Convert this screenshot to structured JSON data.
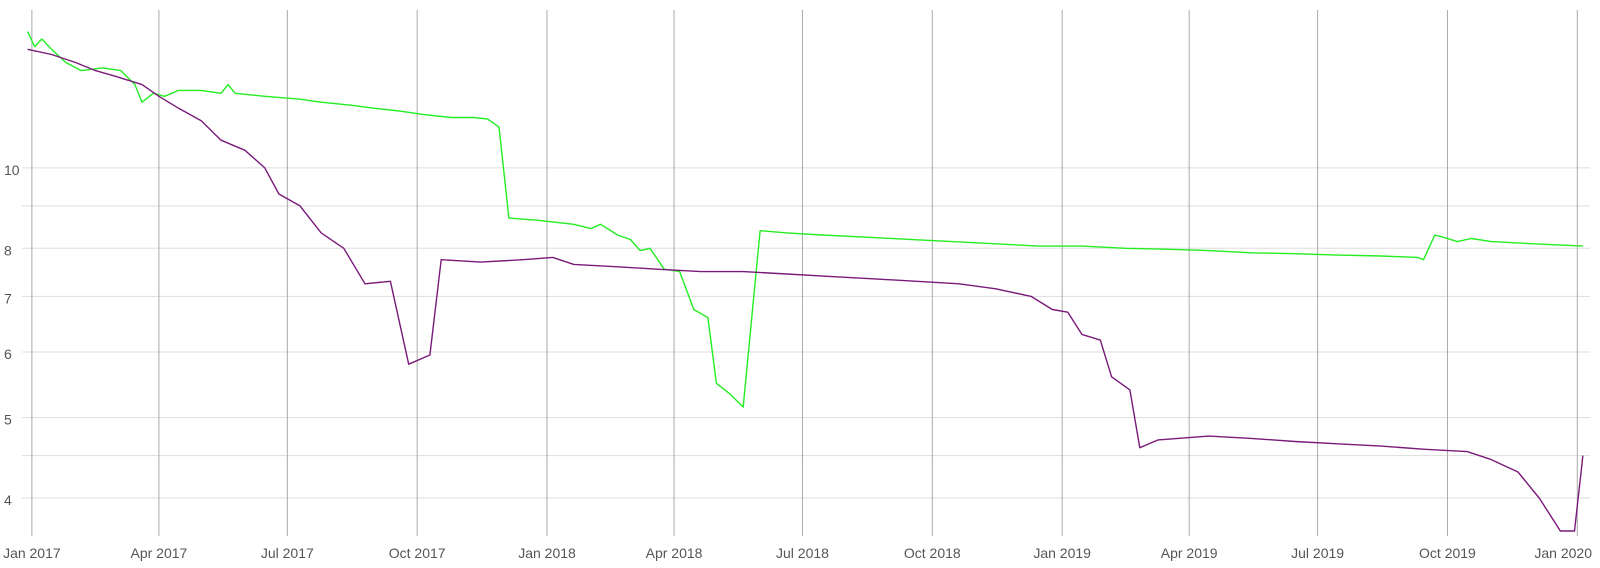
{
  "chart_data": {
    "type": "line",
    "title": "",
    "xlabel": "",
    "ylabel": "",
    "y_scale": "log",
    "ylim": [
      3.6,
      15.5
    ],
    "xlim": [
      "2016-12-25",
      "2020-01-10"
    ],
    "grid": true,
    "legend": "none",
    "y_ticks": [
      {
        "value": 4,
        "label": "4"
      },
      {
        "value": 4.5,
        "label": ""
      },
      {
        "value": 5,
        "label": "5"
      },
      {
        "value": 6,
        "label": "6"
      },
      {
        "value": 7,
        "label": "7"
      },
      {
        "value": 8,
        "label": "8"
      },
      {
        "value": 9,
        "label": ""
      },
      {
        "value": 10,
        "label": "10"
      }
    ],
    "x_ticks": [
      {
        "date": "2017-01-01",
        "label": "Jan 2017"
      },
      {
        "date": "2017-04-01",
        "label": "Apr 2017"
      },
      {
        "date": "2017-07-01",
        "label": "Jul 2017"
      },
      {
        "date": "2017-10-01",
        "label": "Oct 2017"
      },
      {
        "date": "2018-01-01",
        "label": "Jan 2018"
      },
      {
        "date": "2018-04-01",
        "label": "Apr 2018"
      },
      {
        "date": "2018-07-01",
        "label": "Jul 2018"
      },
      {
        "date": "2018-10-01",
        "label": "Oct 2018"
      },
      {
        "date": "2019-01-01",
        "label": "Jan 2019"
      },
      {
        "date": "2019-04-01",
        "label": "Apr 2019"
      },
      {
        "date": "2019-07-01",
        "label": "Jul 2019"
      },
      {
        "date": "2019-10-01",
        "label": "Oct 2019"
      },
      {
        "date": "2020-01-01",
        "label": "Jan 2020"
      }
    ],
    "series": [
      {
        "color": "#22ee22",
        "points": [
          [
            "2016-12-29",
            14.6
          ],
          [
            "2017-01-03",
            14.0
          ],
          [
            "2017-01-08",
            14.3
          ],
          [
            "2017-01-15",
            13.9
          ],
          [
            "2017-01-25",
            13.4
          ],
          [
            "2017-02-05",
            13.1
          ],
          [
            "2017-02-20",
            13.2
          ],
          [
            "2017-03-05",
            13.1
          ],
          [
            "2017-03-15",
            12.6
          ],
          [
            "2017-03-20",
            12.0
          ],
          [
            "2017-03-28",
            12.3
          ],
          [
            "2017-04-05",
            12.2
          ],
          [
            "2017-04-15",
            12.4
          ],
          [
            "2017-05-01",
            12.4
          ],
          [
            "2017-05-15",
            12.3
          ],
          [
            "2017-05-20",
            12.6
          ],
          [
            "2017-05-25",
            12.3
          ],
          [
            "2017-06-15",
            12.2
          ],
          [
            "2017-07-10",
            12.1
          ],
          [
            "2017-07-25",
            12.0
          ],
          [
            "2017-08-15",
            11.9
          ],
          [
            "2017-09-01",
            11.8
          ],
          [
            "2017-09-20",
            11.7
          ],
          [
            "2017-10-05",
            11.6
          ],
          [
            "2017-10-25",
            11.5
          ],
          [
            "2017-11-10",
            11.5
          ],
          [
            "2017-11-20",
            11.45
          ],
          [
            "2017-11-28",
            11.2
          ],
          [
            "2017-12-05",
            8.7
          ],
          [
            "2017-12-25",
            8.65
          ],
          [
            "2018-01-20",
            8.55
          ],
          [
            "2018-02-01",
            8.45
          ],
          [
            "2018-02-08",
            8.55
          ],
          [
            "2018-02-20",
            8.3
          ],
          [
            "2018-03-01",
            8.2
          ],
          [
            "2018-03-08",
            7.95
          ],
          [
            "2018-03-15",
            8.0
          ],
          [
            "2018-03-25",
            7.55
          ],
          [
            "2018-04-05",
            7.5
          ],
          [
            "2018-04-15",
            6.75
          ],
          [
            "2018-04-25",
            6.6
          ],
          [
            "2018-05-01",
            5.5
          ],
          [
            "2018-05-10",
            5.35
          ],
          [
            "2018-05-20",
            5.15
          ],
          [
            "2018-06-01",
            8.4
          ],
          [
            "2018-06-20",
            8.35
          ],
          [
            "2018-07-15",
            8.3
          ],
          [
            "2018-08-15",
            8.25
          ],
          [
            "2018-09-15",
            8.2
          ],
          [
            "2018-10-15",
            8.15
          ],
          [
            "2018-11-15",
            8.1
          ],
          [
            "2018-12-15",
            8.05
          ],
          [
            "2019-01-15",
            8.05
          ],
          [
            "2019-02-15",
            8.0
          ],
          [
            "2019-03-15",
            7.98
          ],
          [
            "2019-04-15",
            7.95
          ],
          [
            "2019-05-15",
            7.9
          ],
          [
            "2019-06-15",
            7.88
          ],
          [
            "2019-07-15",
            7.85
          ],
          [
            "2019-08-15",
            7.83
          ],
          [
            "2019-09-10",
            7.8
          ],
          [
            "2019-09-14",
            7.75
          ],
          [
            "2019-09-22",
            8.3
          ],
          [
            "2019-09-28",
            8.25
          ],
          [
            "2019-10-08",
            8.15
          ],
          [
            "2019-10-18",
            8.22
          ],
          [
            "2019-11-01",
            8.15
          ],
          [
            "2019-12-01",
            8.1
          ],
          [
            "2020-01-05",
            8.05
          ]
        ]
      },
      {
        "color": "#7a1a7a",
        "points": [
          [
            "2016-12-29",
            13.9
          ],
          [
            "2017-01-15",
            13.7
          ],
          [
            "2017-02-01",
            13.4
          ],
          [
            "2017-02-15",
            13.1
          ],
          [
            "2017-03-01",
            12.9
          ],
          [
            "2017-03-20",
            12.6
          ],
          [
            "2017-04-01",
            12.2
          ],
          [
            "2017-04-15",
            11.8
          ],
          [
            "2017-05-01",
            11.4
          ],
          [
            "2017-05-15",
            10.8
          ],
          [
            "2017-06-01",
            10.5
          ],
          [
            "2017-06-15",
            10.0
          ],
          [
            "2017-06-25",
            9.3
          ],
          [
            "2017-07-10",
            9.0
          ],
          [
            "2017-07-25",
            8.35
          ],
          [
            "2017-08-10",
            8.0
          ],
          [
            "2017-08-25",
            7.25
          ],
          [
            "2017-09-12",
            7.3
          ],
          [
            "2017-09-25",
            5.8
          ],
          [
            "2017-10-10",
            5.95
          ],
          [
            "2017-10-18",
            7.75
          ],
          [
            "2017-11-15",
            7.7
          ],
          [
            "2017-12-15",
            7.75
          ],
          [
            "2018-01-05",
            7.8
          ],
          [
            "2018-01-20",
            7.65
          ],
          [
            "2018-02-20",
            7.6
          ],
          [
            "2018-03-20",
            7.55
          ],
          [
            "2018-04-20",
            7.5
          ],
          [
            "2018-05-20",
            7.5
          ],
          [
            "2018-06-20",
            7.45
          ],
          [
            "2018-07-20",
            7.4
          ],
          [
            "2018-08-20",
            7.35
          ],
          [
            "2018-09-20",
            7.3
          ],
          [
            "2018-10-20",
            7.25
          ],
          [
            "2018-11-15",
            7.15
          ],
          [
            "2018-12-10",
            7.0
          ],
          [
            "2018-12-25",
            6.75
          ],
          [
            "2019-01-05",
            6.7
          ],
          [
            "2019-01-15",
            6.3
          ],
          [
            "2019-01-28",
            6.2
          ],
          [
            "2019-02-05",
            5.6
          ],
          [
            "2019-02-18",
            5.4
          ],
          [
            "2019-02-25",
            4.6
          ],
          [
            "2019-03-10",
            4.7
          ],
          [
            "2019-04-15",
            4.75
          ],
          [
            "2019-05-15",
            4.72
          ],
          [
            "2019-06-15",
            4.68
          ],
          [
            "2019-07-15",
            4.65
          ],
          [
            "2019-08-15",
            4.62
          ],
          [
            "2019-09-15",
            4.58
          ],
          [
            "2019-10-15",
            4.55
          ],
          [
            "2019-11-01",
            4.45
          ],
          [
            "2019-11-20",
            4.3
          ],
          [
            "2019-12-05",
            4.0
          ],
          [
            "2019-12-20",
            3.65
          ],
          [
            "2019-12-30",
            3.65
          ],
          [
            "2020-01-05",
            4.5
          ]
        ]
      }
    ]
  }
}
